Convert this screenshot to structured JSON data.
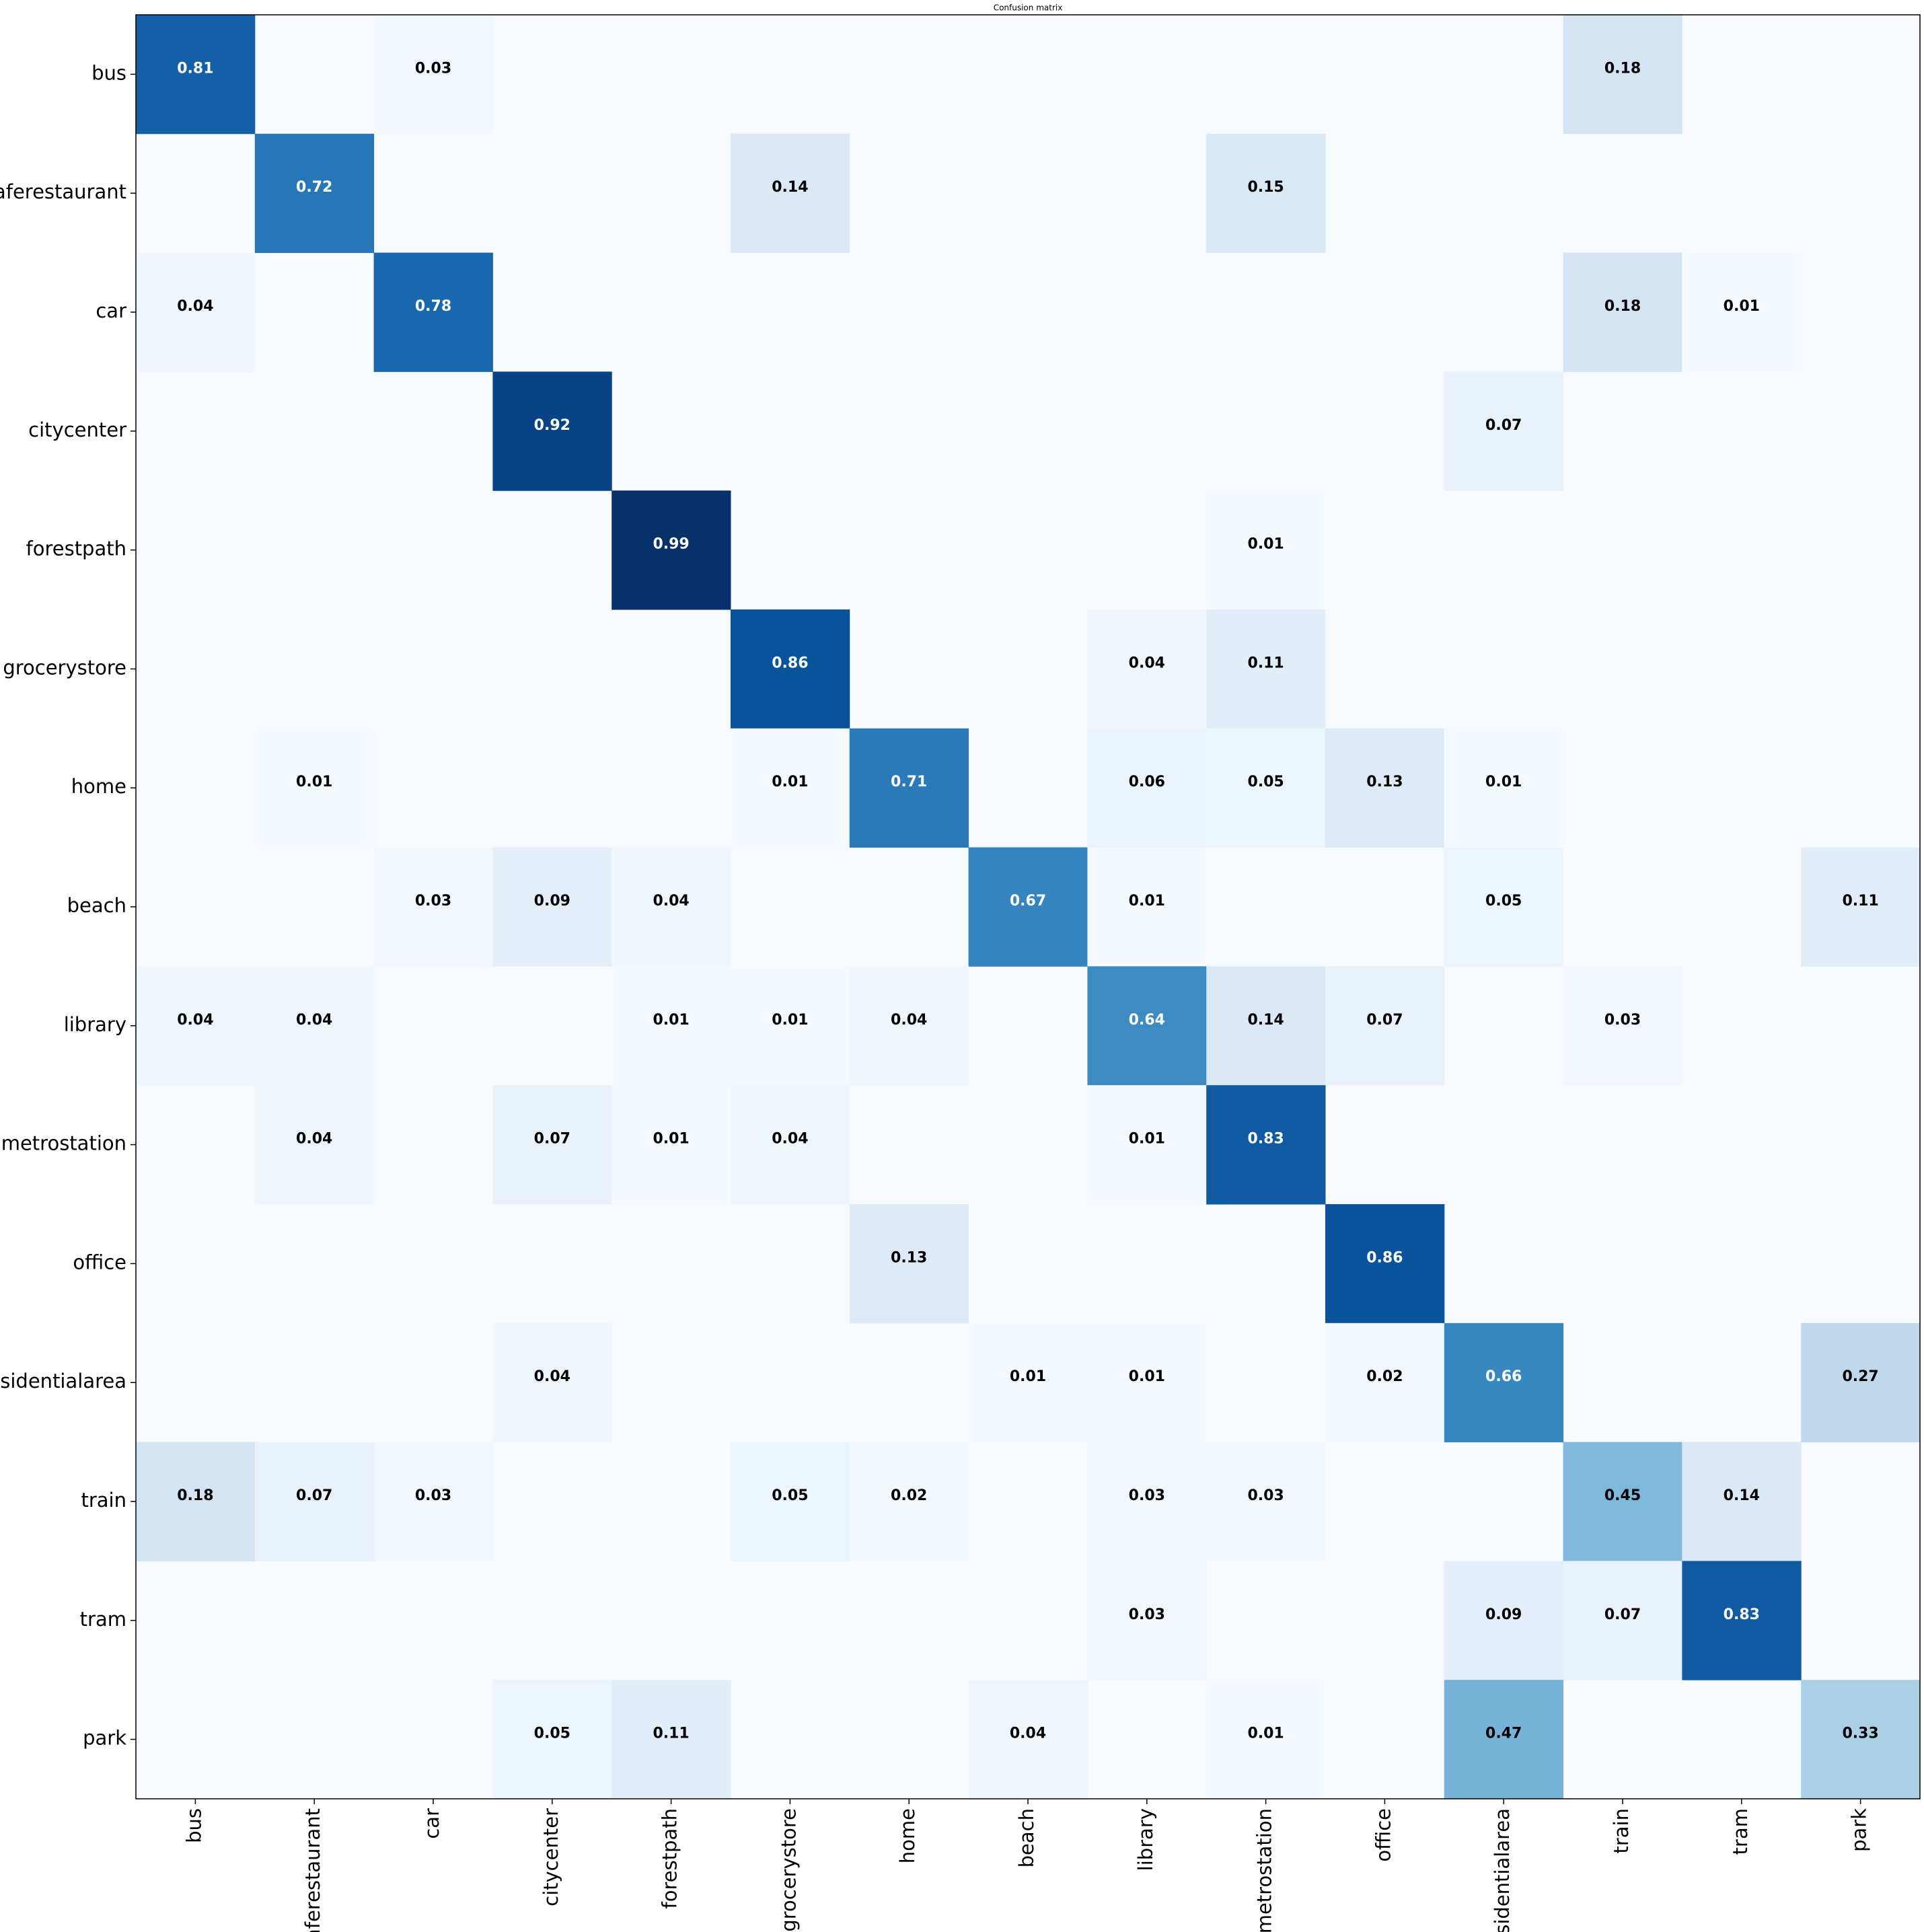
{
  "chart_data": {
    "type": "heatmap",
    "title": "Confusion matrix",
    "rows": [
      "bus",
      "caferestaurant",
      "car",
      "citycenter",
      "forestpath",
      "grocerystore",
      "home",
      "beach",
      "library",
      "metrostation",
      "office",
      "residentialarea",
      "train",
      "tram",
      "park"
    ],
    "columns": [
      "bus",
      "caferestaurant",
      "car",
      "citycenter",
      "forestpath",
      "grocerystore",
      "home",
      "beach",
      "library",
      "metrostation",
      "office",
      "residentialarea",
      "train",
      "tram",
      "park"
    ],
    "values": [
      [
        0.81,
        null,
        0.03,
        null,
        null,
        null,
        null,
        null,
        null,
        null,
        null,
        null,
        0.18,
        null,
        null
      ],
      [
        null,
        0.72,
        null,
        null,
        null,
        0.14,
        null,
        null,
        null,
        0.15,
        null,
        null,
        null,
        null,
        null
      ],
      [
        0.04,
        null,
        0.78,
        null,
        null,
        null,
        null,
        null,
        null,
        null,
        null,
        null,
        0.18,
        0.01,
        null
      ],
      [
        null,
        null,
        null,
        0.92,
        null,
        null,
        null,
        null,
        null,
        null,
        null,
        0.07,
        null,
        null,
        null
      ],
      [
        null,
        null,
        null,
        null,
        0.99,
        null,
        null,
        null,
        null,
        0.01,
        null,
        null,
        null,
        null,
        null
      ],
      [
        null,
        null,
        null,
        null,
        null,
        0.86,
        null,
        null,
        0.04,
        0.11,
        null,
        null,
        null,
        null,
        null
      ],
      [
        null,
        0.01,
        null,
        null,
        null,
        0.01,
        0.71,
        null,
        0.06,
        0.05,
        0.13,
        0.01,
        null,
        null,
        null
      ],
      [
        null,
        null,
        0.03,
        0.09,
        0.04,
        null,
        null,
        0.67,
        0.01,
        null,
        null,
        0.05,
        null,
        null,
        0.11
      ],
      [
        0.04,
        0.04,
        null,
        null,
        0.01,
        0.01,
        0.04,
        null,
        0.64,
        0.14,
        0.07,
        null,
        0.03,
        null,
        null
      ],
      [
        null,
        0.04,
        null,
        0.07,
        0.01,
        0.04,
        null,
        null,
        0.01,
        0.83,
        null,
        null,
        null,
        null,
        null
      ],
      [
        null,
        null,
        null,
        null,
        null,
        null,
        0.13,
        null,
        null,
        null,
        0.86,
        null,
        null,
        null,
        null
      ],
      [
        null,
        null,
        null,
        0.04,
        null,
        null,
        null,
        0.01,
        0.01,
        null,
        0.02,
        0.66,
        null,
        null,
        0.27
      ],
      [
        0.18,
        0.07,
        0.03,
        null,
        null,
        0.05,
        0.02,
        null,
        0.03,
        0.03,
        null,
        null,
        0.45,
        0.14,
        null
      ],
      [
        null,
        null,
        null,
        null,
        null,
        null,
        null,
        null,
        0.03,
        null,
        null,
        0.09,
        0.07,
        0.83,
        null
      ],
      [
        null,
        null,
        null,
        0.05,
        0.11,
        null,
        null,
        0.04,
        null,
        0.01,
        null,
        0.47,
        null,
        null,
        0.33
      ]
    ],
    "colormap": [
      "#f7fbff",
      "#deebf7",
      "#c6dbef",
      "#9ecae1",
      "#6baed6",
      "#4292c6",
      "#2171b5",
      "#08519c",
      "#08306b"
    ]
  }
}
